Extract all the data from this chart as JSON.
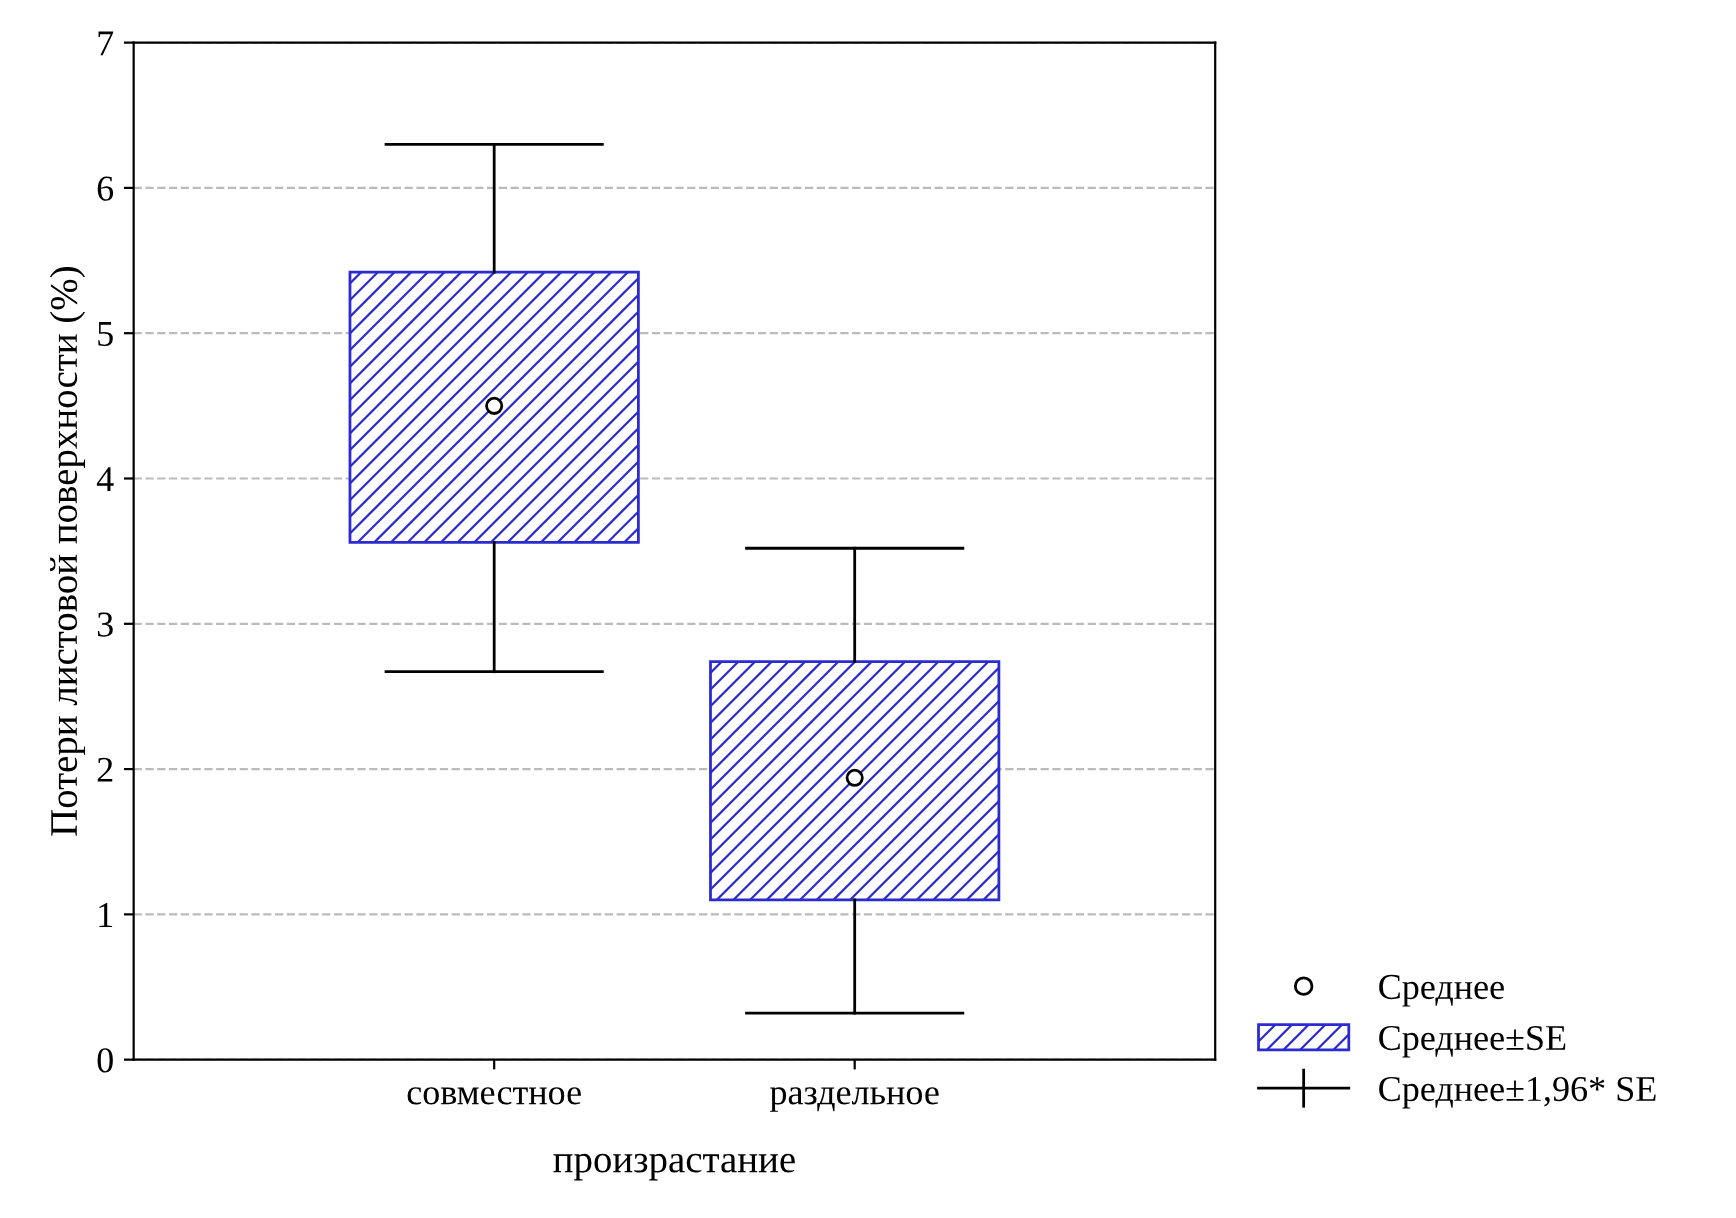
{
  "chart_data": {
    "type": "box",
    "xlabel": "произрастание",
    "ylabel": "Потери листовой поверхности (%)",
    "categories": [
      "совместное",
      "раздельное"
    ],
    "series": [
      {
        "name": "Среднее±SE",
        "color": "#2b2bd0",
        "boxes": [
          {
            "low": 2.67,
            "q1": 3.56,
            "median": 4.5,
            "q3": 5.42,
            "high": 6.3
          },
          {
            "low": 0.32,
            "q1": 1.1,
            "median": 1.94,
            "q3": 2.74,
            "high": 3.52
          }
        ]
      }
    ],
    "annotations": [
      "Среднее",
      "Среднее±1,96* SE"
    ],
    "ylim": [
      0,
      7
    ],
    "yticks": [
      0,
      1,
      2,
      3,
      4,
      5,
      6,
      7
    ],
    "grid": "y",
    "legend": "bottom right",
    "marker": "circle"
  }
}
